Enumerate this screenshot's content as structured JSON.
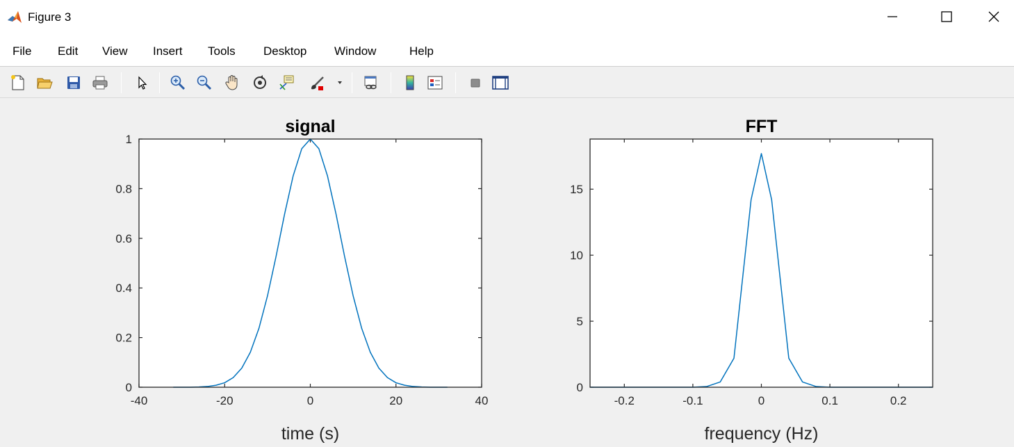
{
  "window": {
    "title": "Figure 3",
    "app_icon": "matlab-icon",
    "controls": [
      "minimize-icon",
      "maximize-icon",
      "close-icon"
    ]
  },
  "menu": {
    "items": [
      "File",
      "Edit",
      "View",
      "Insert",
      "Tools",
      "Desktop",
      "Window",
      "Help"
    ]
  },
  "toolbar": {
    "buttons": [
      "new-figure-icon",
      "open-file-icon",
      "save-icon",
      "print-icon",
      "edit-plot-arrow-icon",
      "zoom-in-icon",
      "zoom-out-icon",
      "pan-hand-icon",
      "rotate-3d-icon",
      "data-cursor-icon",
      "brush-icon",
      "brush-dropdown-icon",
      "link-plot-icon",
      "colorbar-icon",
      "legend-icon",
      "hide-plot-tools-icon",
      "show-plot-tools-icon"
    ]
  },
  "colors": {
    "line": "#0072bd",
    "axes_edge": "#262626",
    "figure_bg": "#f0f0f0",
    "axes_bg": "#ffffff"
  },
  "chart_data": [
    {
      "type": "line",
      "title": "signal",
      "xlabel": "time (s)",
      "ylabel": "",
      "xlim": [
        -40,
        40
      ],
      "ylim": [
        0,
        1
      ],
      "xticks": [
        -40,
        -20,
        0,
        20,
        40
      ],
      "xtick_labels": [
        "-40",
        "-20",
        "0",
        "20",
        "40"
      ],
      "yticks": [
        0,
        0.2,
        0.4,
        0.6,
        0.8,
        1
      ],
      "ytick_labels": [
        "0",
        "0.2",
        "0.4",
        "0.6",
        "0.8",
        "1"
      ],
      "grid": false,
      "series": [
        {
          "x": [
            -32,
            -30,
            -28,
            -26,
            -24,
            -22,
            -20,
            -18,
            -16,
            -14,
            -12,
            -10,
            -8,
            -6,
            -4,
            -2,
            0,
            2,
            4,
            6,
            8,
            10,
            12,
            14,
            16,
            18,
            20,
            22,
            24,
            26,
            28,
            30,
            32
          ],
          "y": [
            0.0,
            0.0,
            0.0,
            0.001,
            0.003,
            0.008,
            0.018,
            0.039,
            0.077,
            0.141,
            0.237,
            0.368,
            0.527,
            0.698,
            0.852,
            0.961,
            1.0,
            0.961,
            0.852,
            0.698,
            0.527,
            0.368,
            0.237,
            0.141,
            0.077,
            0.039,
            0.018,
            0.008,
            0.003,
            0.001,
            0.0,
            0.0,
            0.0
          ]
        }
      ]
    },
    {
      "type": "line",
      "title": "FFT",
      "xlabel": "frequency (Hz)",
      "ylabel": "",
      "xlim": [
        -0.25,
        0.25
      ],
      "ylim": [
        0,
        18.8
      ],
      "xticks": [
        -0.2,
        -0.1,
        0,
        0.1,
        0.2
      ],
      "xtick_labels": [
        "-0.2",
        "-0.1",
        "0",
        "0.1",
        "0.2"
      ],
      "yticks": [
        0,
        5,
        10,
        15
      ],
      "ytick_labels": [
        "0",
        "5",
        "10",
        "15"
      ],
      "grid": false,
      "series": [
        {
          "x": [
            -0.25,
            -0.1,
            -0.08,
            -0.06,
            -0.04,
            -0.03,
            -0.015,
            0,
            0.015,
            0.03,
            0.04,
            0.06,
            0.08,
            0.1,
            0.25
          ],
          "y": [
            0,
            0,
            0.05,
            0.4,
            2.2,
            7.0,
            14.2,
            17.7,
            14.2,
            7.0,
            2.2,
            0.4,
            0.05,
            0,
            0
          ]
        }
      ]
    }
  ]
}
